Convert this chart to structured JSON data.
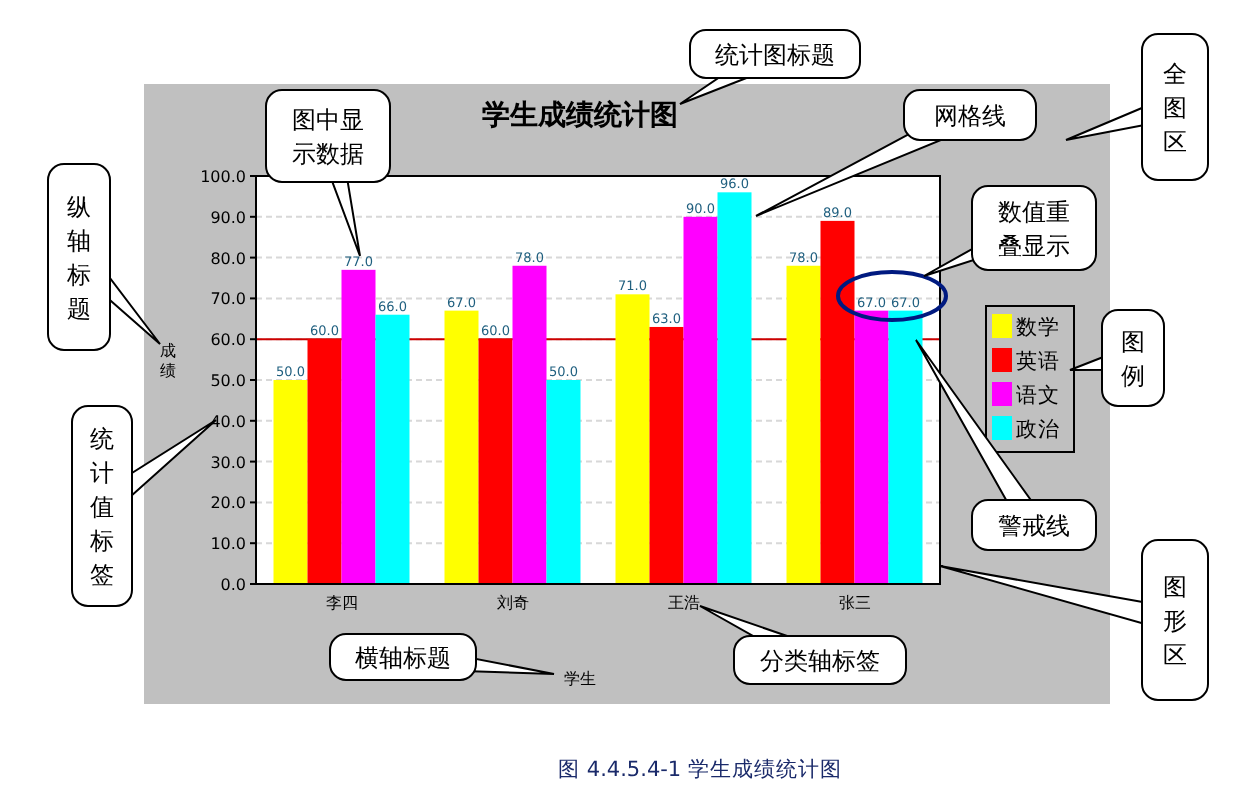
{
  "chart_data": {
    "type": "bar",
    "title": "学生成绩统计图",
    "xlabel": "学生",
    "ylabel": "成绩",
    "categories": [
      "李四",
      "刘奇",
      "王浩",
      "张三"
    ],
    "series": [
      {
        "name": "数学",
        "color": "#ffff00",
        "values": [
          50,
          67,
          71,
          78
        ],
        "value_labels": [
          "50.0",
          "67.0",
          "71.0",
          "78.0"
        ]
      },
      {
        "name": "英语",
        "color": "#ff0000",
        "values": [
          60,
          60,
          63,
          89
        ],
        "value_labels": [
          "60.0",
          "60.0",
          "63.0",
          "89.0"
        ]
      },
      {
        "name": "语文",
        "color": "#ff00ff",
        "values": [
          77,
          78,
          90,
          67
        ],
        "value_labels": [
          "77.0",
          "78.0",
          "90.0",
          "67.0"
        ]
      },
      {
        "name": "政治",
        "color": "#00ffff",
        "values": [
          66,
          50,
          96,
          67
        ],
        "value_labels": [
          "66.0",
          "50.0",
          "96.0",
          "67.0"
        ]
      }
    ],
    "ylim": [
      0,
      100
    ],
    "yticks": [
      {
        "value": 0,
        "label": "0.0"
      },
      {
        "value": 10,
        "label": "10.0"
      },
      {
        "value": 20,
        "label": "20.0"
      },
      {
        "value": 30,
        "label": "30.0"
      },
      {
        "value": 40,
        "label": "40.0"
      },
      {
        "value": 50,
        "label": "50.0"
      },
      {
        "value": 60,
        "label": "60.0"
      },
      {
        "value": 70,
        "label": "70.0"
      },
      {
        "value": 80,
        "label": "80.0"
      },
      {
        "value": 90,
        "label": "90.0"
      },
      {
        "value": 100,
        "label": "100.0"
      }
    ],
    "grid": "y",
    "legend": "right",
    "ref_lines": [
      {
        "axis": "y",
        "value": 60,
        "color": "#cc0000"
      }
    ],
    "annotations": [
      "统计图标题",
      "图中显示数据",
      "网格线",
      "全图区",
      "纵轴标题",
      "统计值标签",
      "数值重叠显示",
      "图例",
      "警戒线",
      "图形区",
      "横轴标题",
      "分类轴标签",
      "图 4.4.5.4-1 学生成绩统计图"
    ]
  }
}
